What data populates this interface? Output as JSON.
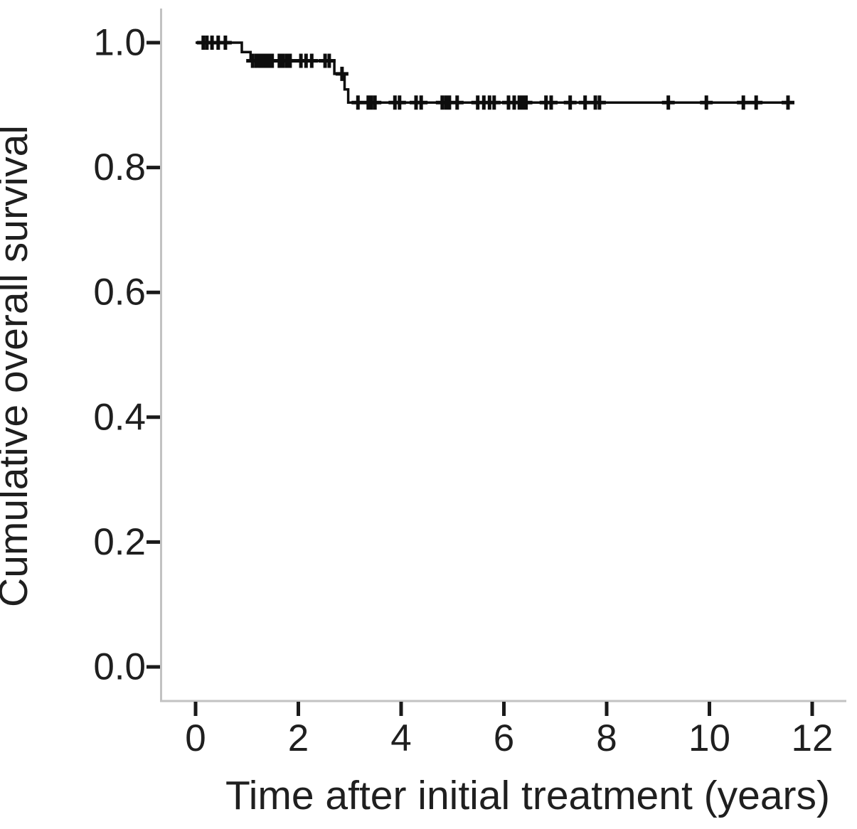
{
  "chart_data": {
    "type": "line",
    "style": "kaplan_meier_step",
    "title": "",
    "xlabel": "Time after initial treatment (years)",
    "ylabel": "Cumulative overall survival",
    "xlim": [
      0,
      12
    ],
    "ylim": [
      0.0,
      1.0
    ],
    "x_tick_values": [
      0,
      2,
      4,
      6,
      8,
      10,
      12
    ],
    "x_tick_labels": [
      "0",
      "2",
      "4",
      "6",
      "8",
      "10",
      "12"
    ],
    "y_tick_values": [
      0.0,
      0.2,
      0.4,
      0.6,
      0.8,
      1.0
    ],
    "y_tick_labels": [
      "0.0",
      "0.2",
      "0.4",
      "0.6",
      "0.8",
      "1.0"
    ],
    "grid": false,
    "legend": "none",
    "colors": {
      "curve": "#0d0d0d",
      "axis_line": "#c2c2c2",
      "tick_mark": "#1a1a1a",
      "text": "#1f1f1f",
      "background": "#ffffff"
    },
    "series": [
      {
        "name": "cumulative-overall-survival",
        "color": "#0d0d0d",
        "step_points": [
          [
            0.0,
            1.0
          ],
          [
            0.9,
            1.0
          ],
          [
            0.9,
            0.985
          ],
          [
            1.07,
            0.985
          ],
          [
            1.07,
            0.971
          ],
          [
            2.7,
            0.971
          ],
          [
            2.7,
            0.95
          ],
          [
            2.9,
            0.95
          ],
          [
            2.9,
            0.925
          ],
          [
            2.97,
            0.925
          ],
          [
            2.97,
            0.904
          ],
          [
            11.6,
            0.904
          ]
        ],
        "censor_marks": [
          [
            0.15,
            1.0
          ],
          [
            0.22,
            1.0
          ],
          [
            0.32,
            1.0
          ],
          [
            0.44,
            1.0
          ],
          [
            0.58,
            1.0
          ],
          [
            1.11,
            0.971
          ],
          [
            1.18,
            0.971
          ],
          [
            1.25,
            0.971
          ],
          [
            1.31,
            0.971
          ],
          [
            1.37,
            0.971
          ],
          [
            1.43,
            0.971
          ],
          [
            1.49,
            0.971
          ],
          [
            1.63,
            0.971
          ],
          [
            1.7,
            0.971
          ],
          [
            1.77,
            0.971
          ],
          [
            1.84,
            0.971
          ],
          [
            2.05,
            0.971
          ],
          [
            2.15,
            0.971
          ],
          [
            2.26,
            0.971
          ],
          [
            2.52,
            0.971
          ],
          [
            2.6,
            0.971
          ],
          [
            2.85,
            0.95
          ],
          [
            3.16,
            0.904
          ],
          [
            3.36,
            0.904
          ],
          [
            3.42,
            0.904
          ],
          [
            3.49,
            0.904
          ],
          [
            3.88,
            0.904
          ],
          [
            3.97,
            0.904
          ],
          [
            4.29,
            0.904
          ],
          [
            4.39,
            0.904
          ],
          [
            4.8,
            0.904
          ],
          [
            4.87,
            0.904
          ],
          [
            4.94,
            0.904
          ],
          [
            5.09,
            0.904
          ],
          [
            5.49,
            0.904
          ],
          [
            5.61,
            0.904
          ],
          [
            5.72,
            0.904
          ],
          [
            5.81,
            0.904
          ],
          [
            6.09,
            0.904
          ],
          [
            6.2,
            0.904
          ],
          [
            6.3,
            0.904
          ],
          [
            6.37,
            0.904
          ],
          [
            6.43,
            0.904
          ],
          [
            6.82,
            0.904
          ],
          [
            6.92,
            0.904
          ],
          [
            7.29,
            0.904
          ],
          [
            7.58,
            0.904
          ],
          [
            7.78,
            0.904
          ],
          [
            7.86,
            0.904
          ],
          [
            9.2,
            0.904
          ],
          [
            9.94,
            0.904
          ],
          [
            10.66,
            0.904
          ],
          [
            10.91,
            0.904
          ],
          [
            11.53,
            0.904
          ]
        ]
      }
    ]
  }
}
